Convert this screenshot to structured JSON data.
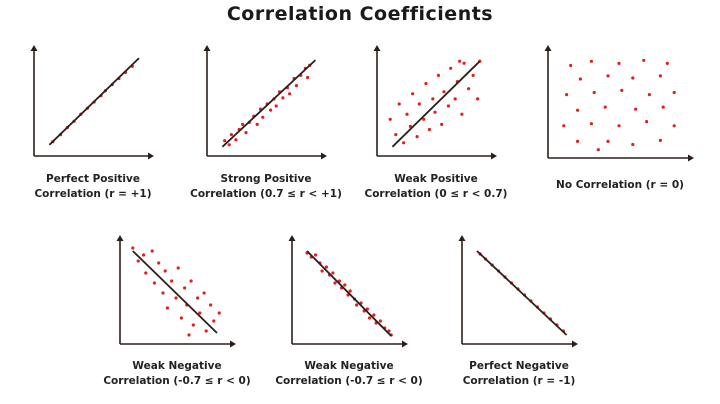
{
  "title": "Correlation Coefficients",
  "colors": {
    "points": "#e02020",
    "line": "#2b1f1a",
    "axes": "#2b1f1a",
    "text": "#222222"
  },
  "chart_data": [
    {
      "type": "scatter",
      "caption": [
        "Perfect Positive",
        "Correlation (r = +1)"
      ],
      "trend_line": [
        [
          0.12,
          0.1
        ],
        [
          0.92,
          0.95
        ]
      ],
      "points": [
        [
          0.15,
          0.13
        ],
        [
          0.22,
          0.2
        ],
        [
          0.28,
          0.27
        ],
        [
          0.34,
          0.33
        ],
        [
          0.4,
          0.4
        ],
        [
          0.46,
          0.46
        ],
        [
          0.52,
          0.52
        ],
        [
          0.58,
          0.58
        ],
        [
          0.62,
          0.63
        ],
        [
          0.68,
          0.69
        ],
        [
          0.74,
          0.75
        ],
        [
          0.8,
          0.81
        ],
        [
          0.86,
          0.87
        ]
      ]
    },
    {
      "type": "scatter",
      "caption": [
        "Strong Positive",
        "Correlation (0.7 ≤ r < +1)"
      ],
      "trend_line": [
        [
          0.12,
          0.08
        ],
        [
          0.95,
          0.93
        ]
      ],
      "points": [
        [
          0.14,
          0.14
        ],
        [
          0.18,
          0.1
        ],
        [
          0.2,
          0.2
        ],
        [
          0.24,
          0.15
        ],
        [
          0.27,
          0.25
        ],
        [
          0.3,
          0.3
        ],
        [
          0.33,
          0.22
        ],
        [
          0.36,
          0.32
        ],
        [
          0.4,
          0.38
        ],
        [
          0.43,
          0.3
        ],
        [
          0.46,
          0.45
        ],
        [
          0.48,
          0.37
        ],
        [
          0.52,
          0.5
        ],
        [
          0.55,
          0.44
        ],
        [
          0.58,
          0.55
        ],
        [
          0.6,
          0.48
        ],
        [
          0.63,
          0.62
        ],
        [
          0.66,
          0.56
        ],
        [
          0.7,
          0.66
        ],
        [
          0.72,
          0.6
        ],
        [
          0.76,
          0.75
        ],
        [
          0.78,
          0.68
        ],
        [
          0.82,
          0.78
        ],
        [
          0.86,
          0.85
        ],
        [
          0.88,
          0.76
        ],
        [
          0.9,
          0.88
        ]
      ]
    },
    {
      "type": "scatter",
      "caption": [
        "Weak Positive",
        "Correlation (0 ≤ r < 0.7)"
      ],
      "trend_line": [
        [
          0.12,
          0.08
        ],
        [
          0.9,
          0.92
        ]
      ],
      "points": [
        [
          0.1,
          0.35
        ],
        [
          0.15,
          0.2
        ],
        [
          0.18,
          0.5
        ],
        [
          0.22,
          0.12
        ],
        [
          0.25,
          0.4
        ],
        [
          0.28,
          0.28
        ],
        [
          0.3,
          0.6
        ],
        [
          0.34,
          0.18
        ],
        [
          0.36,
          0.5
        ],
        [
          0.4,
          0.35
        ],
        [
          0.42,
          0.7
        ],
        [
          0.45,
          0.25
        ],
        [
          0.48,
          0.55
        ],
        [
          0.5,
          0.42
        ],
        [
          0.53,
          0.78
        ],
        [
          0.56,
          0.3
        ],
        [
          0.58,
          0.62
        ],
        [
          0.62,
          0.48
        ],
        [
          0.64,
          0.85
        ],
        [
          0.68,
          0.55
        ],
        [
          0.7,
          0.72
        ],
        [
          0.74,
          0.4
        ],
        [
          0.76,
          0.9
        ],
        [
          0.8,
          0.65
        ],
        [
          0.84,
          0.78
        ],
        [
          0.88,
          0.55
        ],
        [
          0.9,
          0.92
        ],
        [
          0.72,
          0.92
        ]
      ]
    },
    {
      "type": "scatter",
      "caption": [
        "No Correlation (r = 0)"
      ],
      "trend_line": null,
      "points": [
        [
          0.15,
          0.88
        ],
        [
          0.3,
          0.92
        ],
        [
          0.5,
          0.9
        ],
        [
          0.68,
          0.93
        ],
        [
          0.85,
          0.9
        ],
        [
          0.22,
          0.75
        ],
        [
          0.42,
          0.78
        ],
        [
          0.6,
          0.76
        ],
        [
          0.8,
          0.78
        ],
        [
          0.12,
          0.6
        ],
        [
          0.32,
          0.62
        ],
        [
          0.52,
          0.64
        ],
        [
          0.72,
          0.6
        ],
        [
          0.9,
          0.62
        ],
        [
          0.2,
          0.45
        ],
        [
          0.4,
          0.48
        ],
        [
          0.62,
          0.46
        ],
        [
          0.82,
          0.48
        ],
        [
          0.1,
          0.3
        ],
        [
          0.3,
          0.32
        ],
        [
          0.5,
          0.3
        ],
        [
          0.7,
          0.34
        ],
        [
          0.9,
          0.3
        ],
        [
          0.2,
          0.15
        ],
        [
          0.42,
          0.15
        ],
        [
          0.6,
          0.12
        ],
        [
          0.8,
          0.16
        ],
        [
          0.35,
          0.07
        ]
      ]
    },
    {
      "type": "scatter",
      "caption": [
        "Weak Negative",
        "Correlation (-0.7 ≤ r < 0)"
      ],
      "trend_line": [
        [
          0.1,
          0.92
        ],
        [
          0.88,
          0.1
        ]
      ],
      "points": [
        [
          0.1,
          0.95
        ],
        [
          0.15,
          0.82
        ],
        [
          0.2,
          0.88
        ],
        [
          0.22,
          0.7
        ],
        [
          0.28,
          0.92
        ],
        [
          0.3,
          0.6
        ],
        [
          0.34,
          0.8
        ],
        [
          0.38,
          0.5
        ],
        [
          0.4,
          0.72
        ],
        [
          0.42,
          0.35
        ],
        [
          0.46,
          0.62
        ],
        [
          0.5,
          0.45
        ],
        [
          0.52,
          0.75
        ],
        [
          0.55,
          0.25
        ],
        [
          0.58,
          0.55
        ],
        [
          0.6,
          0.38
        ],
        [
          0.64,
          0.62
        ],
        [
          0.66,
          0.18
        ],
        [
          0.7,
          0.45
        ],
        [
          0.72,
          0.3
        ],
        [
          0.76,
          0.5
        ],
        [
          0.78,
          0.12
        ],
        [
          0.82,
          0.38
        ],
        [
          0.85,
          0.22
        ],
        [
          0.9,
          0.3
        ],
        [
          0.62,
          0.08
        ]
      ]
    },
    {
      "type": "scatter",
      "caption": [
        "Weak Negative",
        "Correlation (-0.7 ≤ r < 0)"
      ],
      "trend_line": [
        [
          0.12,
          0.92
        ],
        [
          0.9,
          0.07
        ]
      ],
      "points": [
        [
          0.12,
          0.9
        ],
        [
          0.16,
          0.86
        ],
        [
          0.2,
          0.88
        ],
        [
          0.24,
          0.8
        ],
        [
          0.26,
          0.72
        ],
        [
          0.3,
          0.76
        ],
        [
          0.33,
          0.68
        ],
        [
          0.36,
          0.7
        ],
        [
          0.38,
          0.6
        ],
        [
          0.42,
          0.62
        ],
        [
          0.44,
          0.55
        ],
        [
          0.47,
          0.58
        ],
        [
          0.5,
          0.48
        ],
        [
          0.52,
          0.52
        ],
        [
          0.56,
          0.44
        ],
        [
          0.58,
          0.38
        ],
        [
          0.62,
          0.4
        ],
        [
          0.65,
          0.32
        ],
        [
          0.68,
          0.34
        ],
        [
          0.7,
          0.25
        ],
        [
          0.74,
          0.28
        ],
        [
          0.76,
          0.2
        ],
        [
          0.8,
          0.22
        ],
        [
          0.84,
          0.15
        ],
        [
          0.88,
          0.12
        ],
        [
          0.9,
          0.08
        ]
      ]
    },
    {
      "type": "scatter",
      "caption": [
        "Perfect Negative",
        "Correlation (r = -1)"
      ],
      "trend_line": [
        [
          0.12,
          0.92
        ],
        [
          0.95,
          0.08
        ]
      ],
      "points": [
        [
          0.15,
          0.89
        ],
        [
          0.2,
          0.84
        ],
        [
          0.26,
          0.78
        ],
        [
          0.32,
          0.72
        ],
        [
          0.38,
          0.66
        ],
        [
          0.44,
          0.6
        ],
        [
          0.5,
          0.54
        ],
        [
          0.56,
          0.48
        ],
        [
          0.62,
          0.42
        ],
        [
          0.68,
          0.36
        ],
        [
          0.74,
          0.3
        ],
        [
          0.8,
          0.24
        ],
        [
          0.86,
          0.18
        ],
        [
          0.92,
          0.12
        ]
      ]
    }
  ]
}
